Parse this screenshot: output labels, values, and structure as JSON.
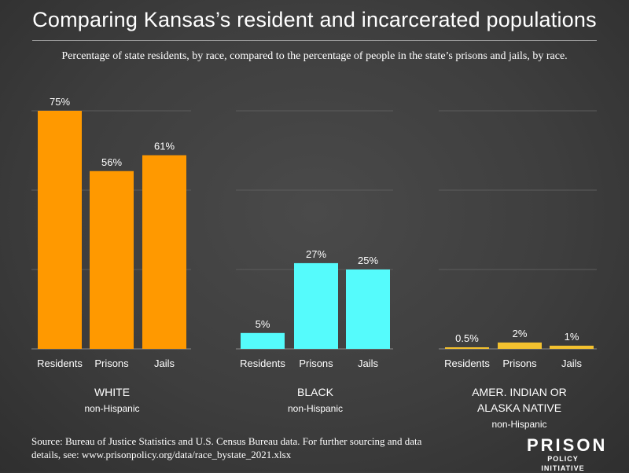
{
  "title": "Comparing Kansas’s resident and incarcerated populations",
  "subtitle": "Percentage of state residents, by race, compared to the percentage of people in the state’s prisons and jails, by race.",
  "source": "Source: Bureau of Justice Statistics and U.S. Census Bureau data. For further sourcing and data details, see: www.prisonpolicy.org/data/race_bystate_2021.xlsx",
  "logo": {
    "main": "PRISON",
    "sub": "POLICY INITIATIVE"
  },
  "chart_data": {
    "type": "bar",
    "ylim": [
      0,
      75
    ],
    "grid": true,
    "groups": [
      {
        "label_lines": [
          "WHITE"
        ],
        "sublabel": "non-Hispanic",
        "color": "#ff9900",
        "categories": [
          "Residents",
          "Prisons",
          "Jails"
        ],
        "values": [
          75,
          56,
          61
        ],
        "value_labels": [
          "75%",
          "56%",
          "61%"
        ]
      },
      {
        "label_lines": [
          "BLACK"
        ],
        "sublabel": "non-Hispanic",
        "color": "#55fbfc",
        "categories": [
          "Residents",
          "Prisons",
          "Jails"
        ],
        "values": [
          5,
          27,
          25
        ],
        "value_labels": [
          "5%",
          "27%",
          "25%"
        ]
      },
      {
        "label_lines": [
          "AMER. INDIAN OR",
          "ALASKA NATIVE"
        ],
        "sublabel": "non-Hispanic",
        "color": "#f3c12f",
        "categories": [
          "Residents",
          "Prisons",
          "Jails"
        ],
        "values": [
          0.5,
          2,
          1
        ],
        "value_labels": [
          "0.5%",
          "2%",
          "1%"
        ]
      }
    ]
  }
}
